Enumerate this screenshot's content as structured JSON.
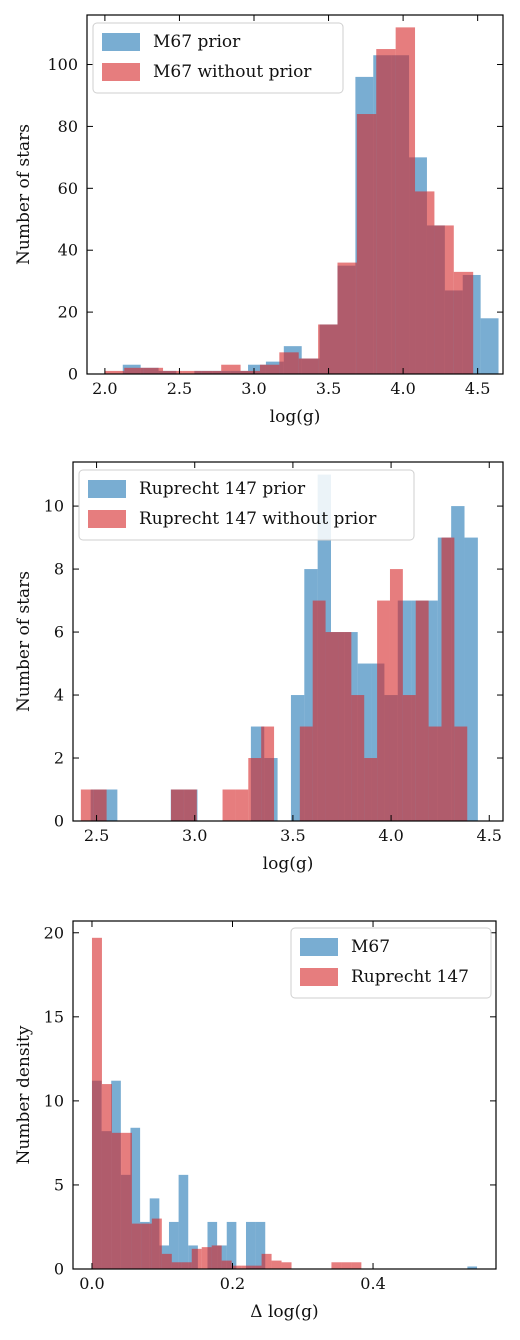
{
  "chart_data": [
    {
      "type": "bar",
      "histogram": true,
      "xlabel": "log(g)",
      "ylabel": "Number of stars",
      "xlim": [
        1.88,
        4.67
      ],
      "ylim": [
        0,
        116
      ],
      "xticks": [
        2.0,
        2.5,
        3.0,
        3.5,
        4.0,
        4.5
      ],
      "xtick_labels": [
        "2.0",
        "2.5",
        "3.0",
        "3.5",
        "4.0",
        "4.5"
      ],
      "yticks": [
        0,
        20,
        40,
        60,
        80,
        100
      ],
      "ytick_labels": [
        "0",
        "20",
        "40",
        "60",
        "80",
        "100"
      ],
      "legend_position": "top-left",
      "grid": false,
      "series": [
        {
          "name": "M67 prior",
          "color": "#1f77b4",
          "bin_width": 0.12,
          "bin_starts": [
            2.0,
            2.12,
            2.24,
            2.36,
            2.48,
            2.6,
            2.72,
            2.84,
            2.96,
            3.08,
            3.2,
            3.32,
            3.44,
            3.56,
            3.68,
            3.8,
            3.92,
            4.04,
            4.16,
            4.28,
            4.4,
            4.52
          ],
          "values": [
            0,
            3,
            2,
            1,
            0,
            1,
            1,
            1,
            3,
            4,
            9,
            5,
            16,
            35,
            96,
            103,
            103,
            70,
            48,
            27,
            32,
            18
          ]
        },
        {
          "name": "M67 without prior",
          "color": "#d62728",
          "bin_width": 0.13,
          "bin_starts": [
            2.0,
            2.13,
            2.26,
            2.39,
            2.52,
            2.65,
            2.78,
            2.91,
            3.04,
            3.17,
            3.3,
            3.43,
            3.56,
            3.69,
            3.82,
            3.95,
            4.08,
            4.21,
            4.34
          ],
          "values": [
            1,
            2,
            2,
            1,
            1,
            1,
            3,
            1,
            3,
            7,
            5,
            16,
            36,
            84,
            105,
            112,
            59,
            48,
            33
          ]
        }
      ]
    },
    {
      "type": "bar",
      "histogram": true,
      "xlabel": "log(g)",
      "ylabel": "Number of stars",
      "xlim": [
        2.38,
        4.57
      ],
      "ylim": [
        0,
        11.4
      ],
      "xticks": [
        2.5,
        3.0,
        3.5,
        4.0,
        4.5
      ],
      "xtick_labels": [
        "2.5",
        "3.0",
        "3.5",
        "4.0",
        "4.5"
      ],
      "yticks": [
        0,
        2,
        4,
        6,
        8,
        10
      ],
      "ytick_labels": [
        "0",
        "2",
        "4",
        "6",
        "8",
        "10"
      ],
      "legend_position": "top-left",
      "grid": false,
      "series": [
        {
          "name": "Ruprecht 147 prior",
          "color": "#1f77b4",
          "bin_width": 0.068,
          "bin_starts": [
            2.47,
            2.538,
            2.606,
            2.674,
            2.742,
            2.81,
            2.878,
            2.946,
            3.014,
            3.082,
            3.15,
            3.218,
            3.286,
            3.354,
            3.422,
            3.49,
            3.558,
            3.626,
            3.694,
            3.762,
            3.83,
            3.898,
            3.966,
            4.034,
            4.102,
            4.17,
            4.238,
            4.306,
            4.374,
            4.442
          ],
          "values": [
            1,
            1,
            0,
            0,
            0,
            0,
            1,
            1,
            0,
            0,
            0,
            0,
            3,
            2,
            0,
            4,
            8,
            11,
            6,
            6,
            5,
            5,
            4,
            7,
            7,
            7,
            9,
            10,
            9,
            0
          ]
        },
        {
          "name": "Ruprecht 147 without prior",
          "color": "#d62728",
          "bin_width": 0.0656,
          "bin_starts": [
            2.42,
            2.4856,
            2.5512,
            2.6168,
            2.6824,
            2.748,
            2.8136,
            2.8792,
            2.9448,
            3.0104,
            3.076,
            3.1416,
            3.2072,
            3.2728,
            3.3384,
            3.404,
            3.4696,
            3.5352,
            3.6008,
            3.6664,
            3.732,
            3.7976,
            3.8632,
            3.9288,
            3.9944,
            4.06,
            4.1256,
            4.1912,
            4.2568,
            4.3224,
            4.388
          ],
          "values": [
            1,
            1,
            0,
            0,
            0,
            0,
            0,
            1,
            1,
            0,
            0,
            1,
            1,
            2,
            3,
            0,
            0,
            3,
            7,
            6,
            6,
            4,
            2,
            7,
            8,
            4,
            7,
            3,
            9,
            3,
            0
          ]
        }
      ]
    },
    {
      "type": "bar",
      "histogram": true,
      "xlabel": "Δ log(g)",
      "ylabel": "Number density",
      "xlim": [
        -0.027,
        0.575
      ],
      "ylim": [
        0,
        20.7
      ],
      "xticks": [
        0.0,
        0.2,
        0.4
      ],
      "xtick_labels": [
        "0.0",
        "0.2",
        "0.4"
      ],
      "yticks": [
        0,
        5,
        10,
        15,
        20
      ],
      "ytick_labels": [
        "0",
        "5",
        "10",
        "15",
        "20"
      ],
      "legend_position": "top-right",
      "grid": false,
      "series": [
        {
          "name": "M67",
          "color": "#1f77b4",
          "bin_width": 0.0137,
          "bin_starts": [
            0.0,
            0.0137,
            0.0274,
            0.0411,
            0.0548,
            0.0685,
            0.0822,
            0.0959,
            0.1096,
            0.1233,
            0.137,
            0.1507,
            0.1644,
            0.1781,
            0.1918,
            0.2055,
            0.2192,
            0.2329,
            0.2466,
            0.2603,
            0.274,
            0.2877,
            0.3014,
            0.3151,
            0.3288,
            0.3425,
            0.3562,
            0.3699,
            0.3836,
            0.3973,
            0.411,
            0.4247,
            0.4384,
            0.4521,
            0.4658,
            0.4795,
            0.4932,
            0.5069,
            0.5206,
            0.5343
          ],
          "values": [
            11.2,
            8.2,
            11.2,
            5.6,
            8.4,
            2.8,
            4.2,
            1.4,
            2.8,
            5.6,
            1.4,
            0.0,
            2.8,
            1.4,
            2.8,
            0.0,
            2.8,
            2.8,
            0.0,
            0.0,
            0.0,
            0.0,
            0.0,
            0.0,
            0.0,
            0.0,
            0.0,
            0.0,
            0.0,
            0.0,
            0.0,
            0.0,
            0.0,
            0.0,
            0.0,
            0.0,
            0.0,
            0.0,
            0.0,
            0.15
          ]
        },
        {
          "name": "Ruprecht 147",
          "color": "#d62728",
          "bin_width": 0.0142,
          "bin_starts": [
            0.0,
            0.0142,
            0.0284,
            0.0426,
            0.0568,
            0.071,
            0.0852,
            0.0994,
            0.1136,
            0.1278,
            0.142,
            0.1562,
            0.1704,
            0.1846,
            0.1988,
            0.213,
            0.2272,
            0.2414,
            0.2556,
            0.2698,
            0.284,
            0.2982,
            0.3124,
            0.3266,
            0.3408,
            0.355,
            0.3692,
            0.3834,
            0.3976,
            0.4118
          ],
          "values": [
            19.7,
            11.0,
            8.1,
            8.1,
            2.7,
            2.7,
            3.0,
            0.9,
            0.4,
            0.4,
            1.2,
            1.3,
            1.4,
            0.5,
            0.2,
            0.2,
            0.2,
            0.9,
            0.5,
            0.4,
            0.0,
            0.0,
            0.0,
            0.0,
            0.4,
            0.4,
            0.4,
            0.0,
            0.0,
            0.0
          ]
        }
      ]
    }
  ]
}
